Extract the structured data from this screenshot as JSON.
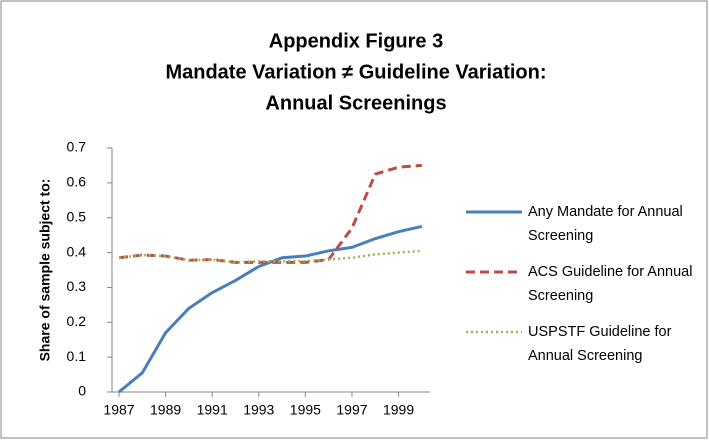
{
  "chart_data": {
    "type": "line",
    "title": [
      "Appendix Figure 3",
      "Mandate Variation ≠ Guideline Variation:",
      "Annual Screenings"
    ],
    "y_label": "Share of sample subject to:",
    "x": [
      1987,
      1988,
      1989,
      1990,
      1991,
      1992,
      1993,
      1994,
      1995,
      1996,
      1997,
      1998,
      1999,
      2000
    ],
    "xlim": [
      1986.7,
      2000.35
    ],
    "xticks": [
      1987,
      1989,
      1991,
      1993,
      1995,
      1997,
      1999
    ],
    "ylim": [
      0,
      0.7
    ],
    "yticks": [
      0,
      0.1,
      0.2,
      0.3,
      0.4,
      0.5,
      0.6,
      0.7
    ],
    "grid": false,
    "legend": "right",
    "series": [
      {
        "name": "Any Mandate for Annual Screening",
        "color": "#4a7ebb",
        "style": "solid",
        "values": [
          0,
          0.055,
          0.17,
          0.24,
          0.285,
          0.32,
          0.36,
          0.385,
          0.39,
          0.405,
          0.415,
          0.44,
          0.46,
          0.475
        ]
      },
      {
        "name": "ACS Guideline for Annual Screening",
        "color": "#be4b48",
        "style": "dashed",
        "values": [
          0.385,
          0.393,
          0.39,
          0.378,
          0.38,
          0.372,
          0.372,
          0.372,
          0.372,
          0.38,
          0.47,
          0.625,
          0.645,
          0.65
        ]
      },
      {
        "name": "USPSTF Guideline for Annual Screening",
        "color": "#98b954",
        "style": "dotted",
        "values": [
          0.385,
          0.393,
          0.39,
          0.378,
          0.38,
          0.372,
          0.375,
          0.375,
          0.375,
          0.38,
          0.385,
          0.395,
          0.4,
          0.405
        ]
      }
    ]
  }
}
